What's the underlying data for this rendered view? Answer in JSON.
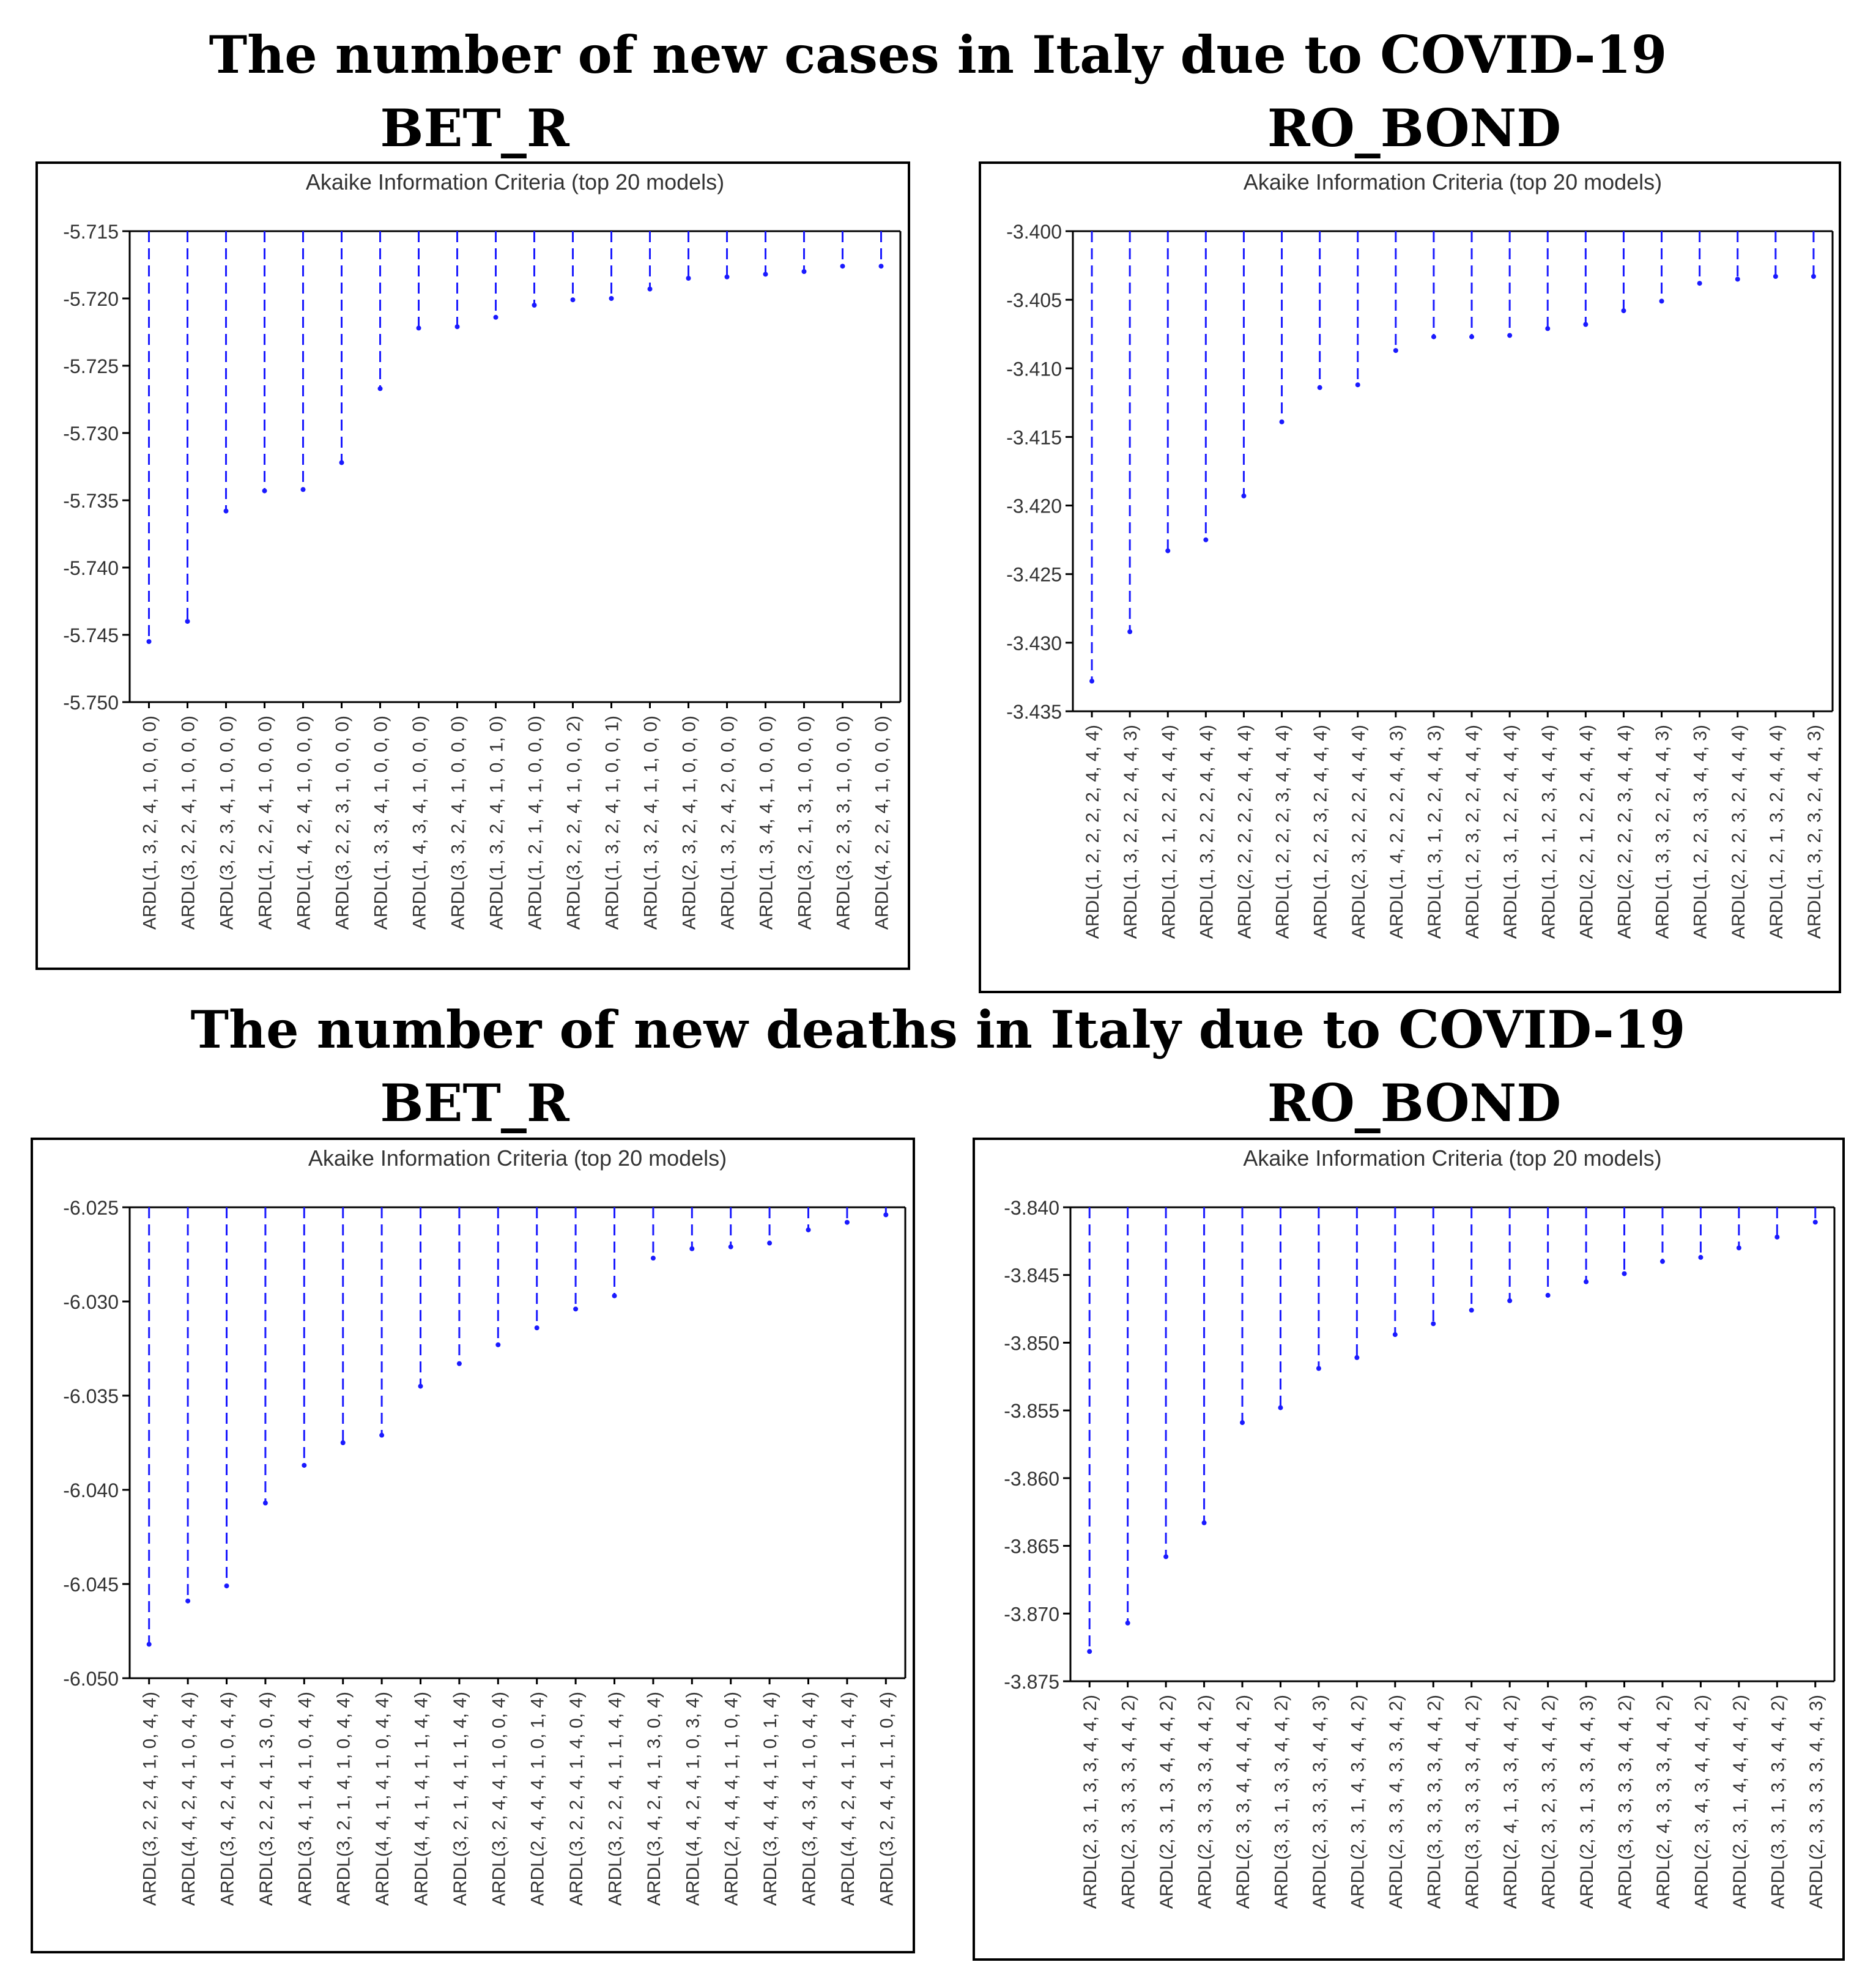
{
  "sections": [
    {
      "title": "The number of new cases in Italy due to COVID-19",
      "left_label": "BET_R",
      "right_label": "RO_BOND"
    },
    {
      "title": "The number of new deaths in Italy due to COVID-19",
      "left_label": "BET_R",
      "right_label": "RO_BOND"
    }
  ],
  "colors": {
    "series": "#1a1aff",
    "axis": "#000000"
  },
  "chart_data": [
    {
      "type": "bar",
      "title": "Akaike Information Criteria (top 20 models)",
      "ylim": [
        -5.75,
        -5.715
      ],
      "yticks": [
        "-5.715",
        "-5.720",
        "-5.725",
        "-5.730",
        "-5.735",
        "-5.740",
        "-5.745",
        "-5.750"
      ],
      "categories": [
        "ARDL(1, 3, 2, 4, 1, 0, 0, 0)",
        "ARDL(3, 2, 2, 4, 1, 0, 0, 0)",
        "ARDL(3, 2, 3, 4, 1, 0, 0, 0)",
        "ARDL(1, 2, 2, 4, 1, 0, 0, 0)",
        "ARDL(1, 4, 2, 4, 1, 0, 0, 0)",
        "ARDL(3, 2, 2, 3, 1, 0, 0, 0)",
        "ARDL(1, 3, 3, 4, 1, 0, 0, 0)",
        "ARDL(1, 4, 3, 4, 1, 0, 0, 0)",
        "ARDL(3, 3, 2, 4, 1, 0, 0, 0)",
        "ARDL(1, 3, 2, 4, 1, 0, 1, 0)",
        "ARDL(1, 2, 1, 4, 1, 0, 0, 0)",
        "ARDL(3, 2, 2, 4, 1, 0, 0, 2)",
        "ARDL(1, 3, 2, 4, 1, 0, 0, 1)",
        "ARDL(1, 3, 2, 4, 1, 1, 0, 0)",
        "ARDL(2, 3, 2, 4, 1, 0, 0, 0)",
        "ARDL(1, 3, 2, 4, 2, 0, 0, 0)",
        "ARDL(1, 3, 4, 4, 1, 0, 0, 0)",
        "ARDL(3, 2, 1, 3, 1, 0, 0, 0)",
        "ARDL(3, 2, 3, 3, 1, 0, 0, 0)",
        "ARDL(4, 2, 2, 4, 1, 0, 0, 0)"
      ],
      "values": [
        -5.7455,
        -5.744,
        -5.7358,
        -5.7343,
        -5.7342,
        -5.7322,
        -5.7267,
        -5.7222,
        -5.7221,
        -5.7214,
        -5.7205,
        -5.7201,
        -5.72,
        -5.7193,
        -5.7185,
        -5.7184,
        -5.7182,
        -5.718,
        -5.7176,
        -5.7176
      ]
    },
    {
      "type": "bar",
      "title": "Akaike Information Criteria (top 20 models)",
      "ylim": [
        -3.435,
        -3.4
      ],
      "yticks": [
        "-3.400",
        "-3.405",
        "-3.410",
        "-3.415",
        "-3.420",
        "-3.425",
        "-3.430",
        "-3.435"
      ],
      "categories": [
        "ARDL(1, 2, 2, 2, 2, 4, 4, 4)",
        "ARDL(1, 3, 2, 2, 2, 4, 4, 3)",
        "ARDL(1, 2, 1, 2, 2, 4, 4, 4)",
        "ARDL(1, 3, 2, 2, 2, 4, 4, 4)",
        "ARDL(2, 2, 2, 2, 2, 4, 4, 4)",
        "ARDL(1, 2, 2, 2, 3, 4, 4, 4)",
        "ARDL(1, 2, 2, 3, 2, 4, 4, 4)",
        "ARDL(2, 3, 2, 2, 2, 4, 4, 4)",
        "ARDL(1, 4, 2, 2, 2, 4, 4, 3)",
        "ARDL(1, 3, 1, 2, 2, 4, 4, 3)",
        "ARDL(1, 2, 3, 2, 2, 4, 4, 4)",
        "ARDL(1, 3, 1, 2, 2, 4, 4, 4)",
        "ARDL(1, 2, 1, 2, 3, 4, 4, 4)",
        "ARDL(2, 2, 1, 2, 2, 4, 4, 4)",
        "ARDL(2, 2, 2, 2, 3, 4, 4, 4)",
        "ARDL(1, 3, 3, 2, 2, 4, 4, 3)",
        "ARDL(1, 2, 2, 3, 3, 4, 4, 3)",
        "ARDL(2, 2, 2, 3, 2, 4, 4, 4)",
        "ARDL(1, 2, 1, 3, 2, 4, 4, 4)",
        "ARDL(1, 3, 2, 3, 2, 4, 4, 3)"
      ],
      "values": [
        -3.4328,
        -3.4292,
        -3.4233,
        -3.4225,
        -3.4193,
        -3.4139,
        -3.4114,
        -3.4112,
        -3.4087,
        -3.4077,
        -3.4077,
        -3.4076,
        -3.4071,
        -3.4068,
        -3.4058,
        -3.4051,
        -3.4038,
        -3.4035,
        -3.4033,
        -3.4033
      ]
    },
    {
      "type": "bar",
      "title": "Akaike Information Criteria (top 20 models)",
      "ylim": [
        -6.05,
        -6.025
      ],
      "yticks": [
        "-6.025",
        "-6.030",
        "-6.035",
        "-6.040",
        "-6.045",
        "-6.050"
      ],
      "categories": [
        "ARDL(3, 2, 2, 4, 1, 0, 4, 4)",
        "ARDL(4, 4, 2, 4, 1, 0, 4, 4)",
        "ARDL(3, 4, 2, 4, 1, 0, 4, 4)",
        "ARDL(3, 2, 2, 4, 1, 3, 0, 4)",
        "ARDL(3, 4, 1, 4, 1, 0, 4, 4)",
        "ARDL(3, 2, 1, 4, 1, 0, 4, 4)",
        "ARDL(4, 4, 1, 4, 1, 0, 4, 4)",
        "ARDL(4, 4, 1, 4, 1, 1, 4, 4)",
        "ARDL(3, 2, 1, 4, 1, 1, 4, 4)",
        "ARDL(3, 2, 4, 4, 1, 0, 0, 4)",
        "ARDL(2, 4, 4, 4, 1, 0, 1, 4)",
        "ARDL(3, 2, 2, 4, 1, 4, 0, 4)",
        "ARDL(3, 2, 2, 4, 1, 1, 4, 4)",
        "ARDL(3, 4, 2, 4, 1, 3, 0, 4)",
        "ARDL(4, 4, 2, 4, 1, 0, 3, 4)",
        "ARDL(2, 4, 4, 4, 1, 1, 0, 4)",
        "ARDL(3, 4, 4, 4, 1, 0, 1, 4)",
        "ARDL(3, 4, 3, 4, 1, 0, 4, 4)",
        "ARDL(4, 4, 2, 4, 1, 1, 4, 4)",
        "ARDL(3, 2, 4, 4, 1, 1, 0, 4)"
      ],
      "values": [
        -6.0482,
        -6.0459,
        -6.0451,
        -6.0407,
        -6.0387,
        -6.0375,
        -6.0371,
        -6.0345,
        -6.0333,
        -6.0323,
        -6.0314,
        -6.0304,
        -6.0297,
        -6.0277,
        -6.0272,
        -6.0271,
        -6.0269,
        -6.0262,
        -6.0258,
        -6.0254
      ]
    },
    {
      "type": "bar",
      "title": "Akaike Information Criteria (top 20 models)",
      "ylim": [
        -3.875,
        -3.84
      ],
      "yticks": [
        "-3.840",
        "-3.845",
        "-3.850",
        "-3.855",
        "-3.860",
        "-3.865",
        "-3.870",
        "-3.875"
      ],
      "categories": [
        "ARDL(2, 3, 1, 3, 3, 4, 4, 2)",
        "ARDL(2, 3, 3, 3, 3, 4, 4, 2)",
        "ARDL(2, 3, 1, 3, 4, 4, 4, 2)",
        "ARDL(2, 3, 3, 3, 3, 4, 4, 2)",
        "ARDL(2, 3, 3, 4, 4, 4, 4, 2)",
        "ARDL(3, 3, 1, 3, 3, 4, 4, 2)",
        "ARDL(2, 3, 3, 3, 3, 4, 4, 3)",
        "ARDL(2, 3, 1, 4, 3, 4, 4, 2)",
        "ARDL(2, 3, 3, 4, 3, 3, 4, 2)",
        "ARDL(3, 3, 3, 3, 3, 4, 4, 2)",
        "ARDL(3, 3, 3, 3, 3, 4, 4, 2)",
        "ARDL(2, 4, 1, 3, 3, 4, 4, 2)",
        "ARDL(2, 3, 2, 3, 3, 4, 4, 2)",
        "ARDL(2, 3, 1, 3, 3, 4, 4, 3)",
        "ARDL(3, 3, 3, 3, 3, 4, 4, 2)",
        "ARDL(2, 4, 3, 3, 3, 4, 4, 2)",
        "ARDL(2, 3, 4, 3, 4, 4, 4, 2)",
        "ARDL(2, 3, 1, 4, 4, 4, 4, 2)",
        "ARDL(3, 3, 1, 3, 3, 4, 4, 2)",
        "ARDL(2, 3, 3, 3, 3, 4, 4, 3)"
      ],
      "values": [
        -3.8728,
        -3.8707,
        -3.8658,
        -3.8633,
        -3.8559,
        -3.8548,
        -3.8519,
        -3.8511,
        -3.8494,
        -3.8486,
        -3.8476,
        -3.8469,
        -3.8465,
        -3.8455,
        -3.8449,
        -3.844,
        -3.8437,
        -3.843,
        -3.8422,
        -3.8411
      ]
    }
  ]
}
